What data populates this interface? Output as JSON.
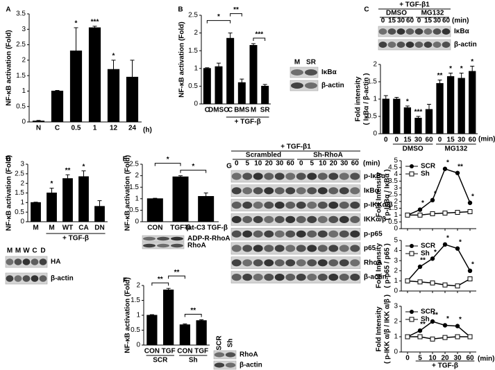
{
  "chart_data": [
    {
      "panel": "A",
      "type": "bar",
      "ylabel": "NF-κB activation (Fold)",
      "xlabel": "(h)",
      "categories": [
        "N",
        "C",
        "0.5",
        "1",
        "12",
        "24"
      ],
      "values": [
        0.03,
        1,
        2.3,
        3.05,
        1.7,
        1.45
      ],
      "errors": [
        0.02,
        0.02,
        0.75,
        0.05,
        0.3,
        0.55
      ],
      "significance": [
        null,
        null,
        "*",
        "***",
        "*",
        null
      ],
      "color": "#000000",
      "ylim": [
        0,
        3.5
      ],
      "yticks": [
        0,
        0.5,
        1,
        1.5,
        2,
        2.5,
        3,
        3.5
      ]
    },
    {
      "panel": "B",
      "type": "bar",
      "ylabel": "NF-κB activation (Fold)",
      "categories": [
        "C",
        "DMSO",
        "C",
        "BMS",
        "M",
        "SR"
      ],
      "values": [
        1,
        1.05,
        1.85,
        0.6,
        1.65,
        0.5
      ],
      "errors": [
        0.02,
        0.1,
        0.15,
        0.1,
        0.05,
        0.05
      ],
      "brackets": [
        "*",
        "**",
        "***"
      ],
      "groups": [
        "+ TGF-β"
      ],
      "color": "#000000",
      "ylim": [
        0,
        2.5
      ],
      "yticks": [
        0,
        0.5,
        1,
        1.5,
        2,
        2.5
      ]
    },
    {
      "panel": "C",
      "type": "bar",
      "ylabel": [
        "Fold intensity",
        "( IκBα / β-actin )"
      ],
      "xlabel": "(min)",
      "categories": [
        "0",
        "0",
        "15",
        "30",
        "60",
        "0",
        "15",
        "30",
        "60"
      ],
      "values": [
        1,
        1,
        0.75,
        0.45,
        0.7,
        1.45,
        1.65,
        1.6,
        1.8
      ],
      "errors": [
        0.1,
        0.05,
        0.05,
        0.05,
        0.15,
        0.1,
        0.1,
        0.15,
        0.15
      ],
      "significance": [
        null,
        null,
        "*",
        "***",
        null,
        "**",
        "*",
        "*",
        "*"
      ],
      "groups": [
        "DMSO",
        "MG132"
      ],
      "color": "#000000",
      "ylim": [
        0,
        2
      ],
      "yticks": [
        0,
        0.5,
        1,
        1.5,
        2
      ]
    },
    {
      "panel": "D",
      "type": "bar",
      "ylabel": "NF-κB activation (Fold)",
      "categories": [
        "M",
        "M",
        "WT",
        "CA",
        "DN"
      ],
      "values": [
        1,
        1.5,
        2.25,
        2.35,
        0.8
      ],
      "errors": [
        0.02,
        0.25,
        0.2,
        0.3,
        0.3
      ],
      "significance": [
        null,
        "*",
        "**",
        "*",
        null
      ],
      "groups": [
        "+ TGF-β"
      ],
      "color": "#000000",
      "ylim": [
        0,
        3
      ],
      "yticks": [
        0,
        0.5,
        1,
        1.5,
        2,
        2.5,
        3
      ]
    },
    {
      "panel": "E",
      "type": "bar",
      "ylabel": "NF-κB activation (Fold)",
      "categories": [
        "CON",
        "TGF-β",
        "Tat-C3 TGF-β"
      ],
      "values": [
        1,
        1.95,
        1.1
      ],
      "errors": [
        0.02,
        0.05,
        0.15
      ],
      "brackets": [
        "*",
        "*"
      ],
      "color": "#000000",
      "ylim": [
        0,
        2.5
      ],
      "yticks": [
        0,
        0.5,
        1,
        1.5,
        2,
        2.5
      ]
    },
    {
      "panel": "F",
      "type": "bar",
      "ylabel": "NF-κB activation (Fold)",
      "categories": [
        "CON",
        "TGF",
        "CON",
        "TGF"
      ],
      "values": [
        1,
        1.85,
        0.68,
        0.82
      ],
      "errors": [
        0.02,
        0.05,
        0.03,
        0.03
      ],
      "brackets": [
        "**",
        "**",
        "**"
      ],
      "groups": [
        "SCR",
        "Sh"
      ],
      "color": "#000000",
      "ylim": [
        0,
        2
      ],
      "yticks": [
        0,
        0.5,
        1,
        1.5,
        2
      ]
    },
    {
      "panel": "G",
      "type": "line",
      "ylabel": [
        "Fold Intensity",
        "( p-IκBα / IκBα )"
      ],
      "categories": [
        "0",
        "5",
        "10",
        "20",
        "30",
        "60"
      ],
      "series": [
        {
          "name": "SCR",
          "color": "#000000",
          "marker": "filled",
          "values": [
            1,
            1.4,
            2.1,
            4.4,
            4.1,
            1.9
          ],
          "significance": [
            null,
            "*",
            "*",
            "*",
            "**",
            "*"
          ]
        },
        {
          "name": "Sh",
          "color": "#000000",
          "marker": "open",
          "values": [
            1,
            1,
            1.1,
            1.15,
            1.2,
            1.25
          ]
        }
      ],
      "ylim": [
        0,
        5
      ],
      "yticks": [
        0,
        0.5,
        1,
        1.5,
        2,
        2.5,
        3,
        3.5,
        4,
        4.5,
        5
      ]
    },
    {
      "type": "line",
      "ylabel": [
        "Fold Intensity",
        "( p-p65 / p65 )"
      ],
      "categories": [
        "0",
        "5",
        "10",
        "20",
        "30",
        "60"
      ],
      "series": [
        {
          "name": "SCR",
          "color": "#000000",
          "marker": "filled",
          "values": [
            1,
            2.4,
            3.2,
            4.6,
            4.2,
            2
          ],
          "significance": [
            null,
            "**",
            "*",
            "*",
            "*",
            "*"
          ]
        },
        {
          "name": "Sh",
          "color": "#000000",
          "marker": "open",
          "values": [
            1,
            0.9,
            0.8,
            0.6,
            0.5,
            1.2
          ]
        }
      ],
      "ylim": [
        0,
        5
      ],
      "yticks": [
        0,
        1,
        2,
        3,
        4,
        5
      ]
    },
    {
      "type": "line",
      "ylabel": [
        "Fold Intensity",
        "( p-IKK α/β / IKK α/β )"
      ],
      "xlabel": "(min)",
      "categories": [
        "0",
        "5",
        "10",
        "20",
        "30",
        "60"
      ],
      "series": [
        {
          "name": "SCR",
          "color": "#000000",
          "marker": "filled",
          "values": [
            1,
            1.4,
            2,
            1.75,
            1.7,
            1
          ],
          "significance": [
            null,
            "**",
            "**",
            "*",
            "*",
            null
          ]
        },
        {
          "name": "Sh",
          "color": "#000000",
          "marker": "open",
          "values": [
            1,
            1,
            0.85,
            0.95,
            1,
            1
          ]
        }
      ],
      "groups": [
        "+ TGF-β"
      ],
      "ylim": [
        0,
        3
      ],
      "yticks": [
        0,
        1,
        2,
        3
      ]
    }
  ],
  "blots": [
    {
      "lanes": [
        "M",
        "SR"
      ],
      "rows": [
        "IκBα",
        "β-actin"
      ]
    },
    {
      "treatment": "+ TGF-β1",
      "groups": [
        "DMSO",
        "MG132"
      ],
      "lanes": [
        "0",
        "15",
        "30",
        "60",
        "0",
        "15",
        "30",
        "60"
      ],
      "unit": "(min)",
      "rows": [
        "IκBα",
        "β-actin"
      ]
    },
    {
      "lanes": [
        "M",
        "M",
        "W",
        "C",
        "D"
      ],
      "rows": [
        "HA",
        "β-actin"
      ]
    },
    {
      "rows": [
        "ADP-R-RhoA",
        "RhoA"
      ]
    },
    {
      "lanes": [
        "SCR",
        "Sh"
      ],
      "rows": [
        "RhoA",
        "β-actin"
      ]
    },
    {
      "treatment": "+ TGF-β1",
      "groups": [
        "Scrambled",
        "Sh-RhoA"
      ],
      "lanes": [
        "0",
        "5",
        "10",
        "20",
        "30",
        "60",
        "0",
        "5",
        "10",
        "20",
        "30",
        "60"
      ],
      "unit": "(min)",
      "rows": [
        "p-IκBα",
        "IκBα",
        "p-IKKα/β",
        "IKKα/β",
        "p-p65",
        "p65",
        "RhoA",
        "β-actin"
      ]
    }
  ]
}
